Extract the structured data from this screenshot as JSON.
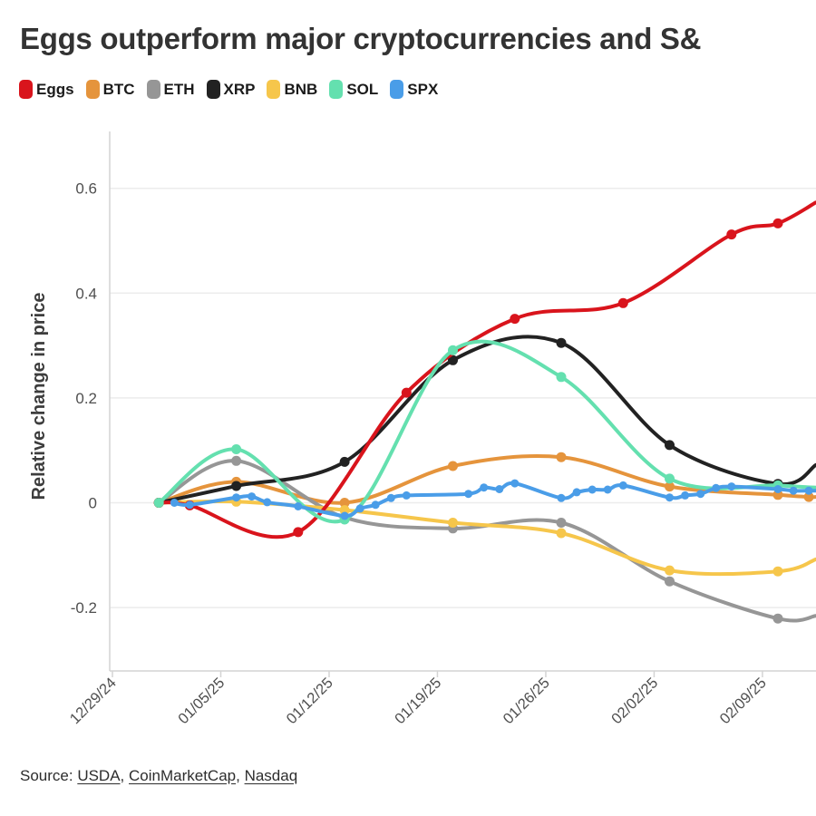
{
  "title": "Eggs outperform major cryptocurrencies and S&",
  "legend": [
    {
      "label": "Eggs",
      "color": "#d9141c"
    },
    {
      "label": "BTC",
      "color": "#e5943c"
    },
    {
      "label": "ETH",
      "color": "#969696"
    },
    {
      "label": "XRP",
      "color": "#222222"
    },
    {
      "label": "BNB",
      "color": "#f6c64b"
    },
    {
      "label": "SOL",
      "color": "#64e0af"
    },
    {
      "label": "SPX",
      "color": "#4a9de8"
    }
  ],
  "chart_data": {
    "type": "line",
    "title": "Eggs outperform major cryptocurrencies and S&",
    "xlabel": "",
    "ylabel": "Relative change in price",
    "x_tick_labels": [
      "12/29/24",
      "01/05/25",
      "01/12/25",
      "01/19/25",
      "01/26/25",
      "02/02/25",
      "02/09/25"
    ],
    "x_tick_days": [
      0,
      7,
      14,
      21,
      28,
      35,
      42
    ],
    "y_tick_labels": [
      "0.6",
      "0.4",
      "0.2",
      "0",
      "-0.2"
    ],
    "y_tick_values": [
      0.6,
      0.4,
      0.2,
      0,
      -0.2
    ],
    "ylim": [
      -0.32,
      0.71
    ],
    "xlim_days": [
      0,
      45.45
    ],
    "grid": "horizontal",
    "legend_position": "top-left",
    "series": [
      {
        "name": "BTC",
        "color": "#e5943c",
        "marker_radius": 5.5,
        "points": [
          [
            3,
            0
          ],
          [
            8,
            0.04
          ],
          [
            15,
            0.0
          ],
          [
            22,
            0.07
          ],
          [
            29,
            0.087
          ],
          [
            36,
            0.031
          ],
          [
            43,
            0.015
          ],
          [
            45,
            0.011
          ]
        ],
        "line_end": [
          45.45,
          0.011
        ]
      },
      {
        "name": "ETH",
        "color": "#969696",
        "marker_radius": 5.5,
        "points": [
          [
            3,
            0
          ],
          [
            8,
            0.08
          ],
          [
            15,
            -0.028
          ],
          [
            22,
            -0.049
          ],
          [
            29,
            -0.038
          ],
          [
            36,
            -0.15
          ],
          [
            43,
            -0.221
          ]
        ],
        "line_end": [
          45.45,
          -0.216
        ]
      },
      {
        "name": "BNB",
        "color": "#f6c64b",
        "marker_radius": 5.5,
        "points": [
          [
            3,
            0
          ],
          [
            8,
            0.002
          ],
          [
            15,
            -0.014
          ],
          [
            22,
            -0.038
          ],
          [
            29,
            -0.058
          ],
          [
            36,
            -0.129
          ],
          [
            43,
            -0.131
          ]
        ],
        "line_end": [
          45.45,
          -0.108
        ]
      },
      {
        "name": "XRP",
        "color": "#222222",
        "marker_radius": 5.5,
        "points": [
          [
            3,
            0
          ],
          [
            8,
            0.032
          ],
          [
            15,
            0.078
          ],
          [
            22,
            0.272
          ],
          [
            29,
            0.305
          ],
          [
            36,
            0.11
          ],
          [
            43,
            0.036
          ]
        ],
        "line_end": [
          45.45,
          0.072
        ]
      },
      {
        "name": "Eggs",
        "color": "#d9141c",
        "marker_radius": 5.5,
        "points": [
          [
            3,
            0
          ],
          [
            5,
            -0.005
          ],
          [
            12,
            -0.056
          ],
          [
            19,
            0.21
          ],
          [
            26,
            0.351
          ],
          [
            33,
            0.381
          ],
          [
            40,
            0.512
          ],
          [
            43,
            0.533
          ]
        ],
        "line_end": [
          45.45,
          0.573
        ]
      },
      {
        "name": "SOL",
        "color": "#64e0af",
        "marker_radius": 5.5,
        "points": [
          [
            3,
            0
          ],
          [
            8,
            0.102
          ],
          [
            15,
            -0.032
          ],
          [
            22,
            0.291
          ],
          [
            29,
            0.24
          ],
          [
            36,
            0.046
          ],
          [
            43,
            0.033
          ]
        ],
        "line_end": [
          45.45,
          0.029
        ]
      },
      {
        "name": "SPX",
        "color": "#4a9de8",
        "marker_radius": 4.5,
        "points": [
          [
            4,
            0
          ],
          [
            5,
            -0.004
          ],
          [
            8,
            0.01
          ],
          [
            9,
            0.012
          ],
          [
            10,
            0.001
          ],
          [
            12,
            -0.007
          ],
          [
            15,
            -0.025
          ],
          [
            16,
            -0.011
          ],
          [
            17,
            -0.004
          ],
          [
            18,
            0.009
          ],
          [
            19,
            0.014
          ],
          [
            23,
            0.017
          ],
          [
            24,
            0.029
          ],
          [
            25,
            0.026
          ],
          [
            26,
            0.037
          ],
          [
            29,
            0.009
          ],
          [
            30,
            0.02
          ],
          [
            31,
            0.025
          ],
          [
            32,
            0.025
          ],
          [
            33,
            0.033
          ],
          [
            36,
            0.01
          ],
          [
            37,
            0.014
          ],
          [
            38,
            0.017
          ],
          [
            39,
            0.028
          ],
          [
            40,
            0.031
          ],
          [
            43,
            0.026
          ],
          [
            44,
            0.023
          ],
          [
            45,
            0.023
          ]
        ],
        "line_end": [
          45.45,
          0.023
        ]
      }
    ]
  },
  "source": {
    "prefix": "Source: ",
    "links": [
      "USDA",
      "CoinMarketCap",
      "Nasdaq"
    ],
    "separator": ", "
  },
  "style": {
    "grid_color": "#ececec",
    "axis_color": "#d4d4d4",
    "tick_label_color": "#4f4f4f",
    "axis_title_color": "#3d3d3d"
  }
}
